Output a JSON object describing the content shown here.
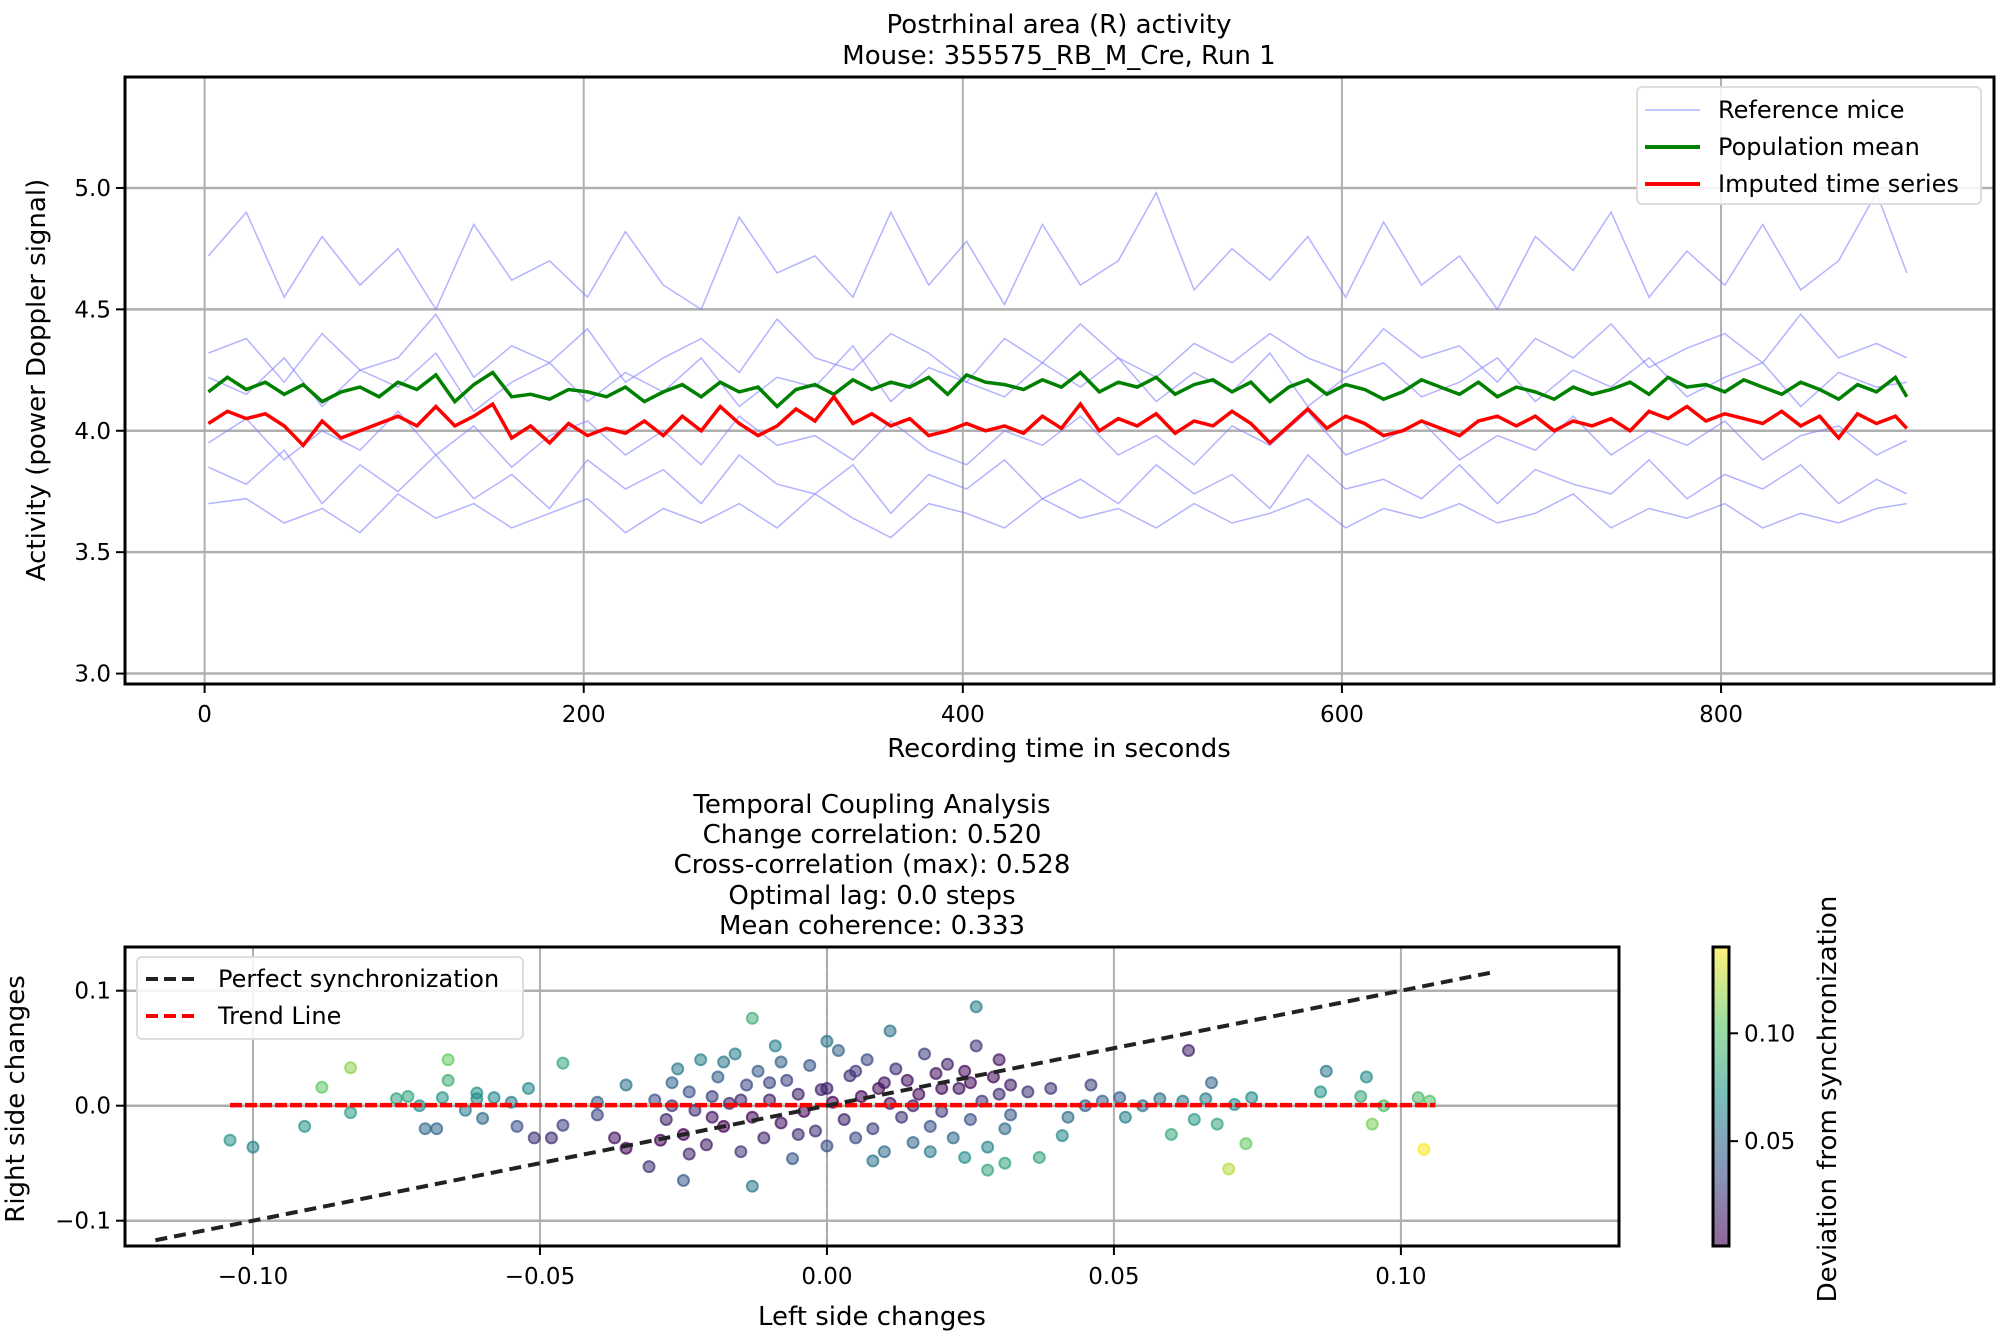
{
  "chart_data": [
    {
      "type": "line",
      "title": "Postrhinal area (R) activity",
      "subtitle": "Mouse: 355575_RB_M_Cre, Run 1",
      "xlabel": "Recording time in seconds",
      "ylabel": "Activity (power Doppler signal)",
      "xlim": [
        -42,
        944
      ],
      "ylim": [
        2.957,
        5.457
      ],
      "xticks": [
        0,
        200,
        400,
        600,
        800
      ],
      "xtick_labels": [
        "0",
        "200",
        "400",
        "600",
        "800"
      ],
      "yticks": [
        3.0,
        3.5,
        4.0,
        4.5,
        5.0
      ],
      "ytick_labels": [
        "3.0",
        "3.5",
        "4.0",
        "4.5",
        "5.0"
      ],
      "grid": true,
      "legend_position": "top-right",
      "legend": [
        "Reference mice",
        "Population mean",
        "Imputed time series"
      ],
      "colors": {
        "reference": "#8080ff",
        "mean": "#008000",
        "imputed": "#ff0000"
      },
      "reference_x": [
        2,
        22,
        42,
        62,
        82,
        102,
        122,
        142,
        162,
        182,
        202,
        222,
        242,
        262,
        282,
        302,
        322,
        342,
        362,
        382,
        402,
        422,
        442,
        462,
        482,
        502,
        522,
        542,
        562,
        582,
        602,
        622,
        642,
        662,
        682,
        702,
        722,
        742,
        762,
        782,
        802,
        822,
        842,
        862,
        882,
        898
      ],
      "reference_series": [
        [
          4.72,
          4.9,
          4.55,
          4.8,
          4.6,
          4.75,
          4.5,
          4.85,
          4.62,
          4.7,
          4.55,
          4.82,
          4.6,
          4.5,
          4.88,
          4.65,
          4.72,
          4.55,
          4.9,
          4.6,
          4.78,
          4.52,
          4.85,
          4.6,
          4.7,
          4.98,
          4.58,
          4.75,
          4.62,
          4.8,
          4.55,
          4.86,
          4.6,
          4.72,
          4.5,
          4.8,
          4.66,
          4.9,
          4.55,
          4.74,
          4.6,
          4.85,
          4.58,
          4.7,
          4.98,
          4.65
        ],
        [
          4.32,
          4.38,
          4.2,
          4.4,
          4.25,
          4.3,
          4.48,
          4.22,
          4.35,
          4.28,
          4.42,
          4.2,
          4.3,
          4.38,
          4.24,
          4.46,
          4.3,
          4.25,
          4.4,
          4.32,
          4.2,
          4.38,
          4.28,
          4.44,
          4.3,
          4.22,
          4.36,
          4.28,
          4.4,
          4.3,
          4.24,
          4.42,
          4.3,
          4.35,
          4.2,
          4.38,
          4.3,
          4.44,
          4.26,
          4.34,
          4.4,
          4.28,
          4.48,
          4.3,
          4.36,
          4.3
        ],
        [
          4.22,
          4.15,
          4.3,
          4.1,
          4.25,
          4.18,
          4.32,
          4.08,
          4.2,
          4.28,
          4.12,
          4.24,
          4.16,
          4.3,
          4.1,
          4.22,
          4.18,
          4.35,
          4.12,
          4.26,
          4.2,
          4.14,
          4.28,
          4.18,
          4.3,
          4.12,
          4.24,
          4.16,
          4.32,
          4.1,
          4.22,
          4.28,
          4.14,
          4.2,
          4.3,
          4.12,
          4.25,
          4.18,
          4.3,
          4.14,
          4.22,
          4.28,
          4.1,
          4.24,
          4.18,
          4.2
        ],
        [
          3.95,
          4.05,
          3.88,
          4.0,
          3.92,
          4.08,
          3.9,
          4.02,
          3.85,
          3.98,
          4.04,
          3.9,
          4.0,
          3.86,
          4.06,
          3.94,
          3.98,
          3.88,
          4.04,
          3.92,
          3.86,
          4.0,
          3.94,
          4.06,
          3.9,
          3.98,
          3.86,
          4.02,
          3.94,
          4.08,
          3.9,
          3.96,
          4.04,
          3.88,
          3.98,
          3.92,
          4.06,
          3.9,
          4.0,
          3.94,
          4.04,
          3.88,
          3.98,
          4.02,
          3.9,
          3.96
        ],
        [
          3.85,
          3.78,
          3.92,
          3.7,
          3.86,
          3.75,
          3.9,
          3.72,
          3.82,
          3.68,
          3.88,
          3.76,
          3.84,
          3.7,
          3.9,
          3.78,
          3.74,
          3.86,
          3.66,
          3.82,
          3.76,
          3.88,
          3.72,
          3.8,
          3.7,
          3.86,
          3.74,
          3.82,
          3.68,
          3.9,
          3.76,
          3.8,
          3.72,
          3.86,
          3.7,
          3.84,
          3.78,
          3.74,
          3.88,
          3.72,
          3.82,
          3.76,
          3.86,
          3.7,
          3.8,
          3.74
        ],
        [
          3.7,
          3.72,
          3.62,
          3.68,
          3.58,
          3.74,
          3.64,
          3.7,
          3.6,
          3.66,
          3.72,
          3.58,
          3.68,
          3.62,
          3.7,
          3.6,
          3.74,
          3.64,
          3.56,
          3.7,
          3.66,
          3.6,
          3.72,
          3.64,
          3.68,
          3.6,
          3.7,
          3.62,
          3.66,
          3.72,
          3.6,
          3.68,
          3.64,
          3.7,
          3.62,
          3.66,
          3.74,
          3.6,
          3.68,
          3.64,
          3.7,
          3.6,
          3.66,
          3.62,
          3.68,
          3.7
        ]
      ],
      "mean_x": [
        2,
        12,
        22,
        32,
        42,
        52,
        62,
        72,
        82,
        92,
        102,
        112,
        122,
        132,
        142,
        152,
        162,
        172,
        182,
        192,
        202,
        212,
        222,
        232,
        242,
        252,
        262,
        272,
        282,
        292,
        302,
        312,
        322,
        332,
        342,
        352,
        362,
        372,
        382,
        392,
        402,
        412,
        422,
        432,
        442,
        452,
        462,
        472,
        482,
        492,
        502,
        512,
        522,
        532,
        542,
        552,
        562,
        572,
        582,
        592,
        602,
        612,
        622,
        632,
        642,
        652,
        662,
        672,
        682,
        692,
        702,
        712,
        722,
        732,
        742,
        752,
        762,
        772,
        782,
        792,
        802,
        812,
        822,
        832,
        842,
        852,
        862,
        872,
        882,
        892,
        898
      ],
      "population_mean": [
        4.16,
        4.22,
        4.17,
        4.2,
        4.15,
        4.19,
        4.12,
        4.16,
        4.18,
        4.14,
        4.2,
        4.17,
        4.23,
        4.12,
        4.19,
        4.24,
        4.14,
        4.15,
        4.13,
        4.17,
        4.16,
        4.14,
        4.18,
        4.12,
        4.16,
        4.19,
        4.14,
        4.2,
        4.16,
        4.18,
        4.1,
        4.17,
        4.19,
        4.15,
        4.21,
        4.17,
        4.2,
        4.18,
        4.22,
        4.15,
        4.23,
        4.2,
        4.19,
        4.17,
        4.21,
        4.18,
        4.24,
        4.16,
        4.2,
        4.18,
        4.22,
        4.15,
        4.19,
        4.21,
        4.16,
        4.2,
        4.12,
        4.18,
        4.21,
        4.15,
        4.19,
        4.17,
        4.13,
        4.16,
        4.21,
        4.18,
        4.15,
        4.2,
        4.14,
        4.18,
        4.16,
        4.13,
        4.18,
        4.15,
        4.17,
        4.2,
        4.15,
        4.22,
        4.18,
        4.19,
        4.16,
        4.21,
        4.18,
        4.15,
        4.2,
        4.17,
        4.13,
        4.19,
        4.16,
        4.22,
        4.14
      ],
      "imputed": [
        4.03,
        4.08,
        4.05,
        4.07,
        4.02,
        3.94,
        4.04,
        3.97,
        4.0,
        4.03,
        4.06,
        4.02,
        4.1,
        4.02,
        4.06,
        4.11,
        3.97,
        4.02,
        3.95,
        4.03,
        3.98,
        4.01,
        3.99,
        4.04,
        3.98,
        4.06,
        4.0,
        4.1,
        4.03,
        3.98,
        4.02,
        4.09,
        4.04,
        4.14,
        4.03,
        4.07,
        4.02,
        4.05,
        3.98,
        4.0,
        4.03,
        4.0,
        4.02,
        3.99,
        4.06,
        4.01,
        4.11,
        4.0,
        4.05,
        4.02,
        4.07,
        3.99,
        4.04,
        4.02,
        4.08,
        4.03,
        3.95,
        4.02,
        4.09,
        4.01,
        4.06,
        4.03,
        3.98,
        4.0,
        4.04,
        4.01,
        3.98,
        4.04,
        4.06,
        4.02,
        4.06,
        4.0,
        4.04,
        4.02,
        4.05,
        4.0,
        4.08,
        4.05,
        4.1,
        4.04,
        4.07,
        4.05,
        4.03,
        4.08,
        4.02,
        4.06,
        3.97,
        4.07,
        4.03,
        4.06,
        4.01
      ]
    },
    {
      "type": "scatter",
      "title": "Temporal Coupling Analysis",
      "subtitle_lines": [
        "Change correlation: 0.520",
        "Cross-correlation (max): 0.528",
        "Optimal lag: 0.0 steps",
        "Mean coherence: 0.333"
      ],
      "xlabel": "Left side changes",
      "ylabel": "Right side changes",
      "xlim": [
        -0.1223,
        0.138
      ],
      "ylim": [
        -0.122,
        0.138
      ],
      "xticks": [
        -0.1,
        -0.05,
        0.0,
        0.05,
        0.1
      ],
      "xtick_labels": [
        "−0.10",
        "−0.05",
        "0.00",
        "0.05",
        "0.10"
      ],
      "yticks": [
        -0.1,
        0.0,
        0.1
      ],
      "ytick_labels": [
        "−0.1",
        "0.0",
        "0.1"
      ],
      "grid": true,
      "legend_position": "top-left",
      "legend": [
        "Perfect synchronization",
        "Trend Line"
      ],
      "perfect_sync": {
        "x": [
          -0.117,
          0.116
        ],
        "y": [
          -0.117,
          0.116
        ],
        "color": "#222222"
      },
      "trend_line": {
        "x": [
          -0.104,
          0.106
        ],
        "y": [
          0.0005,
          0.0005
        ],
        "color": "#ff0000"
      },
      "colorbar": {
        "label": "Deviation from synchronization",
        "range": [
          0.0014,
          0.14
        ],
        "ticks": [
          0.05,
          0.1
        ],
        "tick_labels": [
          "0.05",
          "0.10"
        ],
        "colormap": "viridis"
      },
      "points": [
        [
          -0.104,
          -0.03
        ],
        [
          -0.1,
          -0.036
        ],
        [
          -0.091,
          -0.018
        ],
        [
          -0.088,
          0.016
        ],
        [
          -0.083,
          0.033
        ],
        [
          -0.083,
          -0.006
        ],
        [
          -0.075,
          0.006
        ],
        [
          -0.073,
          0.008
        ],
        [
          -0.071,
          0.0
        ],
        [
          -0.067,
          0.007
        ],
        [
          -0.066,
          0.04
        ],
        [
          -0.066,
          0.022
        ],
        [
          -0.06,
          -0.011
        ],
        [
          -0.061,
          0.011
        ],
        [
          -0.061,
          0.006
        ],
        [
          -0.058,
          0.007
        ],
        [
          -0.055,
          0.003
        ],
        [
          -0.054,
          -0.018
        ],
        [
          -0.051,
          -0.028
        ],
        [
          -0.046,
          0.037
        ],
        [
          -0.046,
          -0.017
        ],
        [
          -0.04,
          0.003
        ],
        [
          -0.04,
          -0.008
        ],
        [
          -0.037,
          -0.028
        ],
        [
          -0.035,
          0.018
        ],
        [
          -0.063,
          -0.004
        ],
        [
          -0.07,
          -0.02
        ],
        [
          -0.068,
          -0.02
        ],
        [
          -0.052,
          0.015
        ],
        [
          -0.048,
          -0.028
        ],
        [
          0.035,
          0.012
        ],
        [
          0.039,
          0.015
        ],
        [
          0.042,
          -0.01
        ],
        [
          0.045,
          0.0
        ],
        [
          0.046,
          0.018
        ],
        [
          0.048,
          0.004
        ],
        [
          0.051,
          0.007
        ],
        [
          0.052,
          -0.01
        ],
        [
          0.055,
          0.0
        ],
        [
          0.058,
          0.006
        ],
        [
          0.06,
          -0.025
        ],
        [
          0.062,
          0.004
        ],
        [
          0.063,
          0.048
        ],
        [
          0.064,
          -0.012
        ],
        [
          0.066,
          0.006
        ],
        [
          0.067,
          0.02
        ],
        [
          0.068,
          -0.016
        ],
        [
          0.07,
          -0.055
        ],
        [
          0.071,
          0.001
        ],
        [
          0.073,
          -0.033
        ],
        [
          0.074,
          0.007
        ],
        [
          0.087,
          0.03
        ],
        [
          0.086,
          0.012
        ],
        [
          0.093,
          0.008
        ],
        [
          0.094,
          0.025
        ],
        [
          0.095,
          -0.016
        ],
        [
          0.097,
          0.0
        ],
        [
          0.104,
          -0.038
        ],
        [
          0.103,
          0.007
        ],
        [
          0.105,
          0.004
        ],
        [
          0.026,
          0.086
        ],
        [
          -0.013,
          0.076
        ],
        [
          0.011,
          0.065
        ],
        [
          0.037,
          -0.045
        ],
        [
          0.041,
          -0.026
        ],
        [
          0.031,
          -0.05
        ],
        [
          0.028,
          -0.056
        ],
        [
          -0.013,
          -0.07
        ],
        [
          -0.025,
          -0.065
        ],
        [
          -0.035,
          -0.037
        ],
        [
          -0.031,
          -0.053
        ],
        [
          -0.03,
          0.005
        ],
        [
          -0.028,
          -0.012
        ],
        [
          -0.027,
          0.02
        ],
        [
          -0.026,
          0.032
        ],
        [
          -0.025,
          -0.025
        ],
        [
          -0.024,
          0.012
        ],
        [
          -0.023,
          -0.004
        ],
        [
          -0.022,
          0.04
        ],
        [
          -0.021,
          -0.034
        ],
        [
          -0.02,
          0.008
        ],
        [
          -0.019,
          0.025
        ],
        [
          -0.018,
          -0.018
        ],
        [
          -0.017,
          0.002
        ],
        [
          -0.016,
          0.045
        ],
        [
          -0.015,
          -0.04
        ],
        [
          -0.014,
          0.018
        ],
        [
          -0.013,
          -0.01
        ],
        [
          -0.012,
          0.03
        ],
        [
          -0.011,
          -0.028
        ],
        [
          -0.01,
          0.005
        ],
        [
          -0.009,
          0.052
        ],
        [
          -0.008,
          -0.015
        ],
        [
          -0.007,
          0.022
        ],
        [
          -0.006,
          -0.046
        ],
        [
          -0.005,
          0.01
        ],
        [
          -0.004,
          -0.005
        ],
        [
          -0.003,
          0.035
        ],
        [
          -0.002,
          -0.022
        ],
        [
          -0.001,
          0.014
        ],
        [
          0.0,
          -0.035
        ],
        [
          0.001,
          0.003
        ],
        [
          0.002,
          0.048
        ],
        [
          0.003,
          -0.012
        ],
        [
          0.004,
          0.026
        ],
        [
          0.005,
          -0.028
        ],
        [
          0.006,
          0.008
        ],
        [
          0.007,
          0.04
        ],
        [
          0.008,
          -0.02
        ],
        [
          0.009,
          0.015
        ],
        [
          0.01,
          -0.04
        ],
        [
          0.011,
          0.002
        ],
        [
          0.012,
          0.032
        ],
        [
          0.013,
          -0.01
        ],
        [
          0.014,
          0.022
        ],
        [
          0.015,
          -0.032
        ],
        [
          0.016,
          0.01
        ],
        [
          0.017,
          0.045
        ],
        [
          0.018,
          -0.018
        ],
        [
          0.019,
          0.028
        ],
        [
          0.02,
          -0.005
        ],
        [
          0.021,
          0.036
        ],
        [
          0.022,
          -0.028
        ],
        [
          0.023,
          0.015
        ],
        [
          0.024,
          0.03
        ],
        [
          0.025,
          -0.012
        ],
        [
          0.026,
          0.052
        ],
        [
          0.027,
          0.004
        ],
        [
          0.028,
          -0.036
        ],
        [
          0.029,
          0.025
        ],
        [
          0.03,
          0.01
        ],
        [
          0.031,
          -0.02
        ],
        [
          0.032,
          0.018
        ],
        [
          0.032,
          -0.008
        ],
        [
          -0.029,
          -0.03
        ],
        [
          -0.027,
          0.0
        ],
        [
          -0.02,
          -0.01
        ],
        [
          -0.015,
          0.005
        ],
        [
          -0.01,
          0.02
        ],
        [
          -0.005,
          -0.025
        ],
        [
          0.0,
          0.015
        ],
        [
          0.005,
          0.03
        ],
        [
          0.01,
          0.02
        ],
        [
          0.015,
          0.0
        ],
        [
          0.02,
          0.015
        ],
        [
          0.025,
          0.02
        ],
        [
          -0.024,
          -0.042
        ],
        [
          -0.018,
          0.038
        ],
        [
          -0.008,
          0.038
        ],
        [
          0.0,
          0.056
        ],
        [
          0.008,
          -0.048
        ],
        [
          0.018,
          -0.04
        ],
        [
          0.024,
          -0.045
        ],
        [
          0.03,
          0.04
        ]
      ]
    }
  ]
}
